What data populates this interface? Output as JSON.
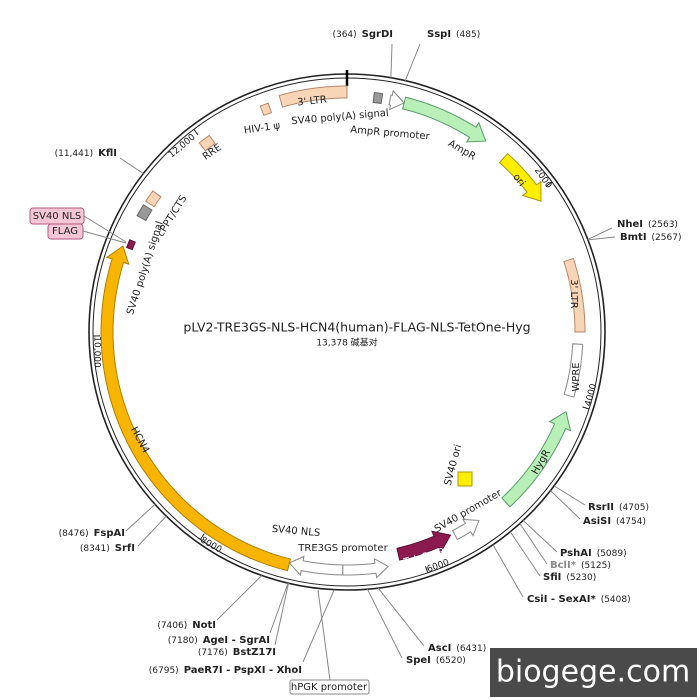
{
  "title": "pLV2-TRE3GS-NLS-HCN4(human)-FLAG-NLS-TetOne-Hyg",
  "length": {
    "value": 13378,
    "label": "13,378 碱基对"
  },
  "ruler": [
    2000,
    4000,
    6000,
    8000,
    {
      "value": 10000,
      "label": "10,000"
    },
    {
      "value": 12000,
      "label": "12,000"
    }
  ],
  "sites": [
    {
      "name": "SgrDI",
      "position": {
        "value": 364,
        "label": "(364)"
      }
    },
    {
      "name": "SspI",
      "position": {
        "value": 485,
        "label": "(485)"
      }
    },
    {
      "name": "NheI",
      "position": {
        "value": 2563,
        "label": "(2563)"
      }
    },
    {
      "name": "BmtI",
      "position": {
        "value": 2567,
        "label": "(2567)"
      }
    },
    {
      "name": "RsrII",
      "position": {
        "value": 4705,
        "label": "(4705)"
      }
    },
    {
      "name": "AsiSI",
      "position": {
        "value": 4754,
        "label": "(4754)"
      }
    },
    {
      "name": "PshAI",
      "position": {
        "value": 5089,
        "label": "(5089)"
      }
    },
    {
      "name": "BclI*",
      "position": {
        "value": 5125,
        "label": "(5125)"
      },
      "color": "#888888"
    },
    {
      "name": "SfiI",
      "position": {
        "value": 5230,
        "label": "(5230)"
      }
    },
    {
      "name": "CsiI - SexAI*",
      "position": {
        "value": 5408,
        "label": "(5408)"
      }
    },
    {
      "name": "AscI",
      "position": {
        "value": 6431,
        "label": "(6431)"
      }
    },
    {
      "name": "SpeI",
      "position": {
        "value": 6520,
        "label": "(6520)"
      }
    },
    {
      "name": "PaeR7I - PspXI - XhoI",
      "position": {
        "value": 6795,
        "label": "(6795)"
      }
    },
    {
      "name": "BstZ17I",
      "position": {
        "value": 7176,
        "label": "(7176)"
      }
    },
    {
      "name": "AgeI - SgrAI",
      "position": {
        "value": 7180,
        "label": "(7180)"
      }
    },
    {
      "name": "NotI",
      "position": {
        "value": 7406,
        "label": "(7406)"
      }
    },
    {
      "name": "SrfI",
      "position": {
        "value": 8341,
        "label": "(8341)"
      }
    },
    {
      "name": "FspAI",
      "position": {
        "value": 8476,
        "label": "(8476)"
      }
    },
    {
      "name": "KflI",
      "position": {
        "value": 11441,
        "label": "(11,441)"
      }
    }
  ],
  "features": [
    "3' LTR",
    "HIV-1 ψ",
    "SV40 poly(A) signal",
    "AmpR promoter",
    "AmpR",
    "ori",
    "3' LTR",
    "WPRE",
    "HygR",
    "SV40 ori",
    "SV40 promoter",
    "Tet-On 3G",
    "TRE3GS promoter",
    "SV40 NLS",
    "HCN4",
    "SV40 poly(A) signal",
    "cPPT/CTS",
    "RRE"
  ],
  "tags": [
    "SV40 NLS",
    "FLAG"
  ],
  "promoter_tag": "hPGK promoter",
  "watermark": "biogege.com"
}
